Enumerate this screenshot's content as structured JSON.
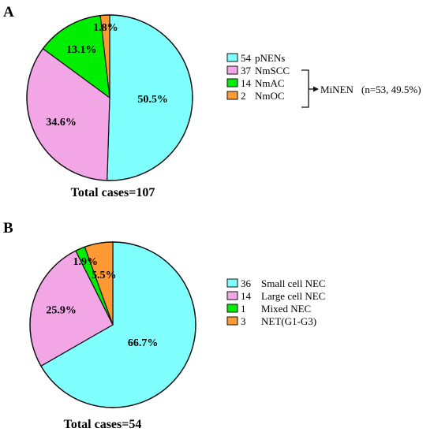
{
  "chart_data": [
    {
      "type": "pie",
      "panel": "A",
      "total_label": "Total cases=107",
      "colors": [
        "#80ffff",
        "#f2a6e6",
        "#00ee00",
        "#ff9933"
      ],
      "slices": [
        {
          "count": "54",
          "name": "pNENs",
          "value": 50.5,
          "label": "50.5%"
        },
        {
          "count": "37",
          "name": "NmSCC",
          "value": 34.6,
          "label": "34.6%"
        },
        {
          "count": "14",
          "name": "NmAC",
          "value": 13.1,
          "label": "13.1%"
        },
        {
          "count": "2",
          "name": "NmOC",
          "value": 1.8,
          "label": "1.8%"
        }
      ],
      "bracket_label": "MiNEN",
      "bracket_note": "(n=53, 49.5%)"
    },
    {
      "type": "pie",
      "panel": "B",
      "total_label": "Total cases=54",
      "colors": [
        "#80ffff",
        "#f2a6e6",
        "#00ee00",
        "#ff9933"
      ],
      "slices": [
        {
          "count": "36",
          "name": "Small cell NEC",
          "value": 66.7,
          "label": "66.7%"
        },
        {
          "count": "14",
          "name": "Large cell NEC",
          "value": 25.9,
          "label": "25.9%"
        },
        {
          "count": "1",
          "name": "Mixed NEC",
          "value": 1.9,
          "label": "1.9%"
        },
        {
          "count": "3",
          "name": "NET(G1-G3)",
          "value": 5.5,
          "label": "5.5%"
        }
      ]
    }
  ]
}
